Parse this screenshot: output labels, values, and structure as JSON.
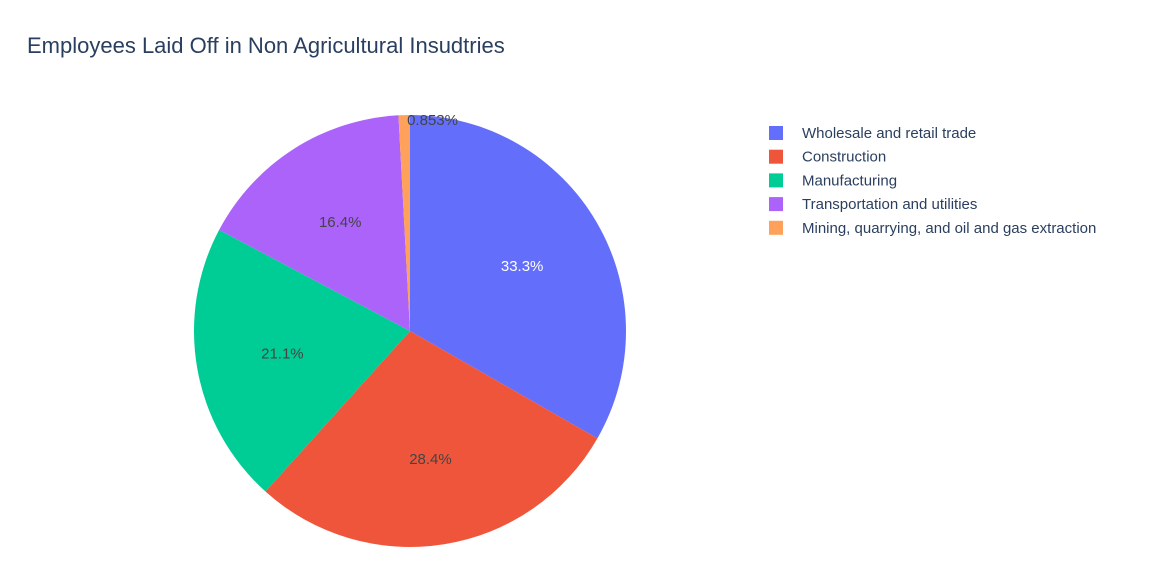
{
  "chart_data": {
    "type": "pie",
    "title": "Employees Laid Off in Non Agricultural Insudtries",
    "legend_position": "right",
    "slices": [
      {
        "name": "Wholesale and retail trade",
        "value": 33.3,
        "label": "33.3%",
        "color": "#636efa"
      },
      {
        "name": "Construction",
        "value": 28.4,
        "label": "28.4%",
        "color": "#ef553b"
      },
      {
        "name": "Manufacturing",
        "value": 21.1,
        "label": "21.1%",
        "color": "#00cc96"
      },
      {
        "name": "Transportation and utilities",
        "value": 16.4,
        "label": "16.4%",
        "color": "#ab63fa"
      },
      {
        "name": "Mining, quarrying, and oil and gas extraction",
        "value": 0.853,
        "label": "0.853%",
        "color": "#ffa15a"
      }
    ]
  }
}
